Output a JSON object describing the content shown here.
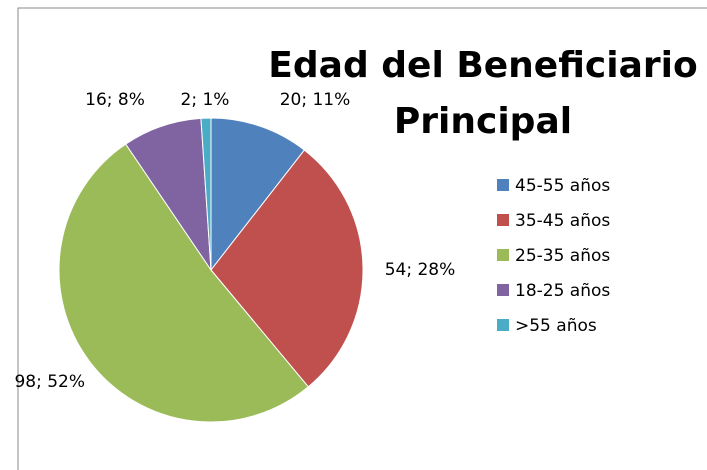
{
  "chart_data": {
    "type": "pie",
    "title": "Edad del Beneficiario Principal",
    "categories": [
      "45-55 años",
      "35-45 años",
      "25-35 años",
      "18-25 años",
      ">55 años"
    ],
    "values": [
      20,
      54,
      98,
      16,
      2
    ],
    "value_labels": [
      "20; 11%",
      "54; 28%",
      "98; 52%",
      "16; 8%",
      "2; 1%"
    ],
    "colors": [
      "#4f81bd",
      "#c0504d",
      "#9bbb59",
      "#8064a2",
      "#4bacc6"
    ],
    "legend": "right"
  }
}
